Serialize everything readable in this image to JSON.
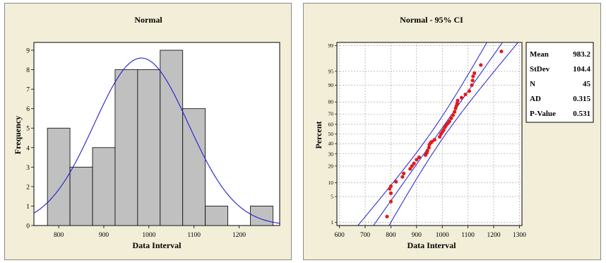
{
  "chart_data": [
    {
      "type": "bar",
      "title": "Normal",
      "xlabel": "Data Interval",
      "ylabel": "Frequency",
      "xlim": [
        745,
        1290
      ],
      "ylim": [
        0,
        9.4
      ],
      "x_ticks": [
        800,
        900,
        1000,
        1100,
        1200
      ],
      "y_ticks": [
        0,
        1,
        2,
        3,
        4,
        5,
        6,
        7,
        8,
        9
      ],
      "bin_width": 50,
      "bins": [
        {
          "center": 800,
          "count": 5
        },
        {
          "center": 850,
          "count": 3
        },
        {
          "center": 900,
          "count": 4
        },
        {
          "center": 950,
          "count": 8
        },
        {
          "center": 1000,
          "count": 8
        },
        {
          "center": 1050,
          "count": 9
        },
        {
          "center": 1100,
          "count": 6
        },
        {
          "center": 1150,
          "count": 1
        },
        {
          "center": 1200,
          "count": 0
        },
        {
          "center": 1250,
          "count": 1
        }
      ],
      "fit": {
        "mean": 983.2,
        "stdev": 104.4,
        "n": 45
      },
      "colors": {
        "bar": "#c0c0c0",
        "curve": "#1f1fd0",
        "plot_bg": "#ffffff",
        "panel_bg": "#f2eed8"
      }
    },
    {
      "type": "scatter",
      "title": "Normal - 95% CI",
      "xlabel": "Data Interval",
      "ylabel": "Percent",
      "xlim": [
        590,
        1310
      ],
      "x_ticks": [
        600,
        700,
        800,
        900,
        1000,
        1100,
        1200,
        1300
      ],
      "y_scale": "normal-probability",
      "y_ticks": [
        1,
        5,
        10,
        20,
        30,
        40,
        50,
        60,
        70,
        80,
        90,
        95,
        99
      ],
      "grid": true,
      "points": [
        {
          "x": 785,
          "y": 1.5
        },
        {
          "x": 800,
          "y": 3.8
        },
        {
          "x": 800,
          "y": 6.0
        },
        {
          "x": 795,
          "y": 7.5
        },
        {
          "x": 800,
          "y": 8.5
        },
        {
          "x": 820,
          "y": 10.5
        },
        {
          "x": 845,
          "y": 13
        },
        {
          "x": 850,
          "y": 15
        },
        {
          "x": 875,
          "y": 18
        },
        {
          "x": 882,
          "y": 20
        },
        {
          "x": 890,
          "y": 22
        },
        {
          "x": 900,
          "y": 25
        },
        {
          "x": 910,
          "y": 27
        },
        {
          "x": 935,
          "y": 29
        },
        {
          "x": 940,
          "y": 31
        },
        {
          "x": 942,
          "y": 33
        },
        {
          "x": 948,
          "y": 36
        },
        {
          "x": 950,
          "y": 39
        },
        {
          "x": 955,
          "y": 41
        },
        {
          "x": 960,
          "y": 42
        },
        {
          "x": 970,
          "y": 44
        },
        {
          "x": 990,
          "y": 47
        },
        {
          "x": 995,
          "y": 50
        },
        {
          "x": 1000,
          "y": 52
        },
        {
          "x": 1005,
          "y": 54
        },
        {
          "x": 1010,
          "y": 57
        },
        {
          "x": 1015,
          "y": 59
        },
        {
          "x": 1022,
          "y": 61
        },
        {
          "x": 1028,
          "y": 63
        },
        {
          "x": 1035,
          "y": 66
        },
        {
          "x": 1042,
          "y": 69
        },
        {
          "x": 1048,
          "y": 72
        },
        {
          "x": 1052,
          "y": 75
        },
        {
          "x": 1055,
          "y": 77
        },
        {
          "x": 1058,
          "y": 79
        },
        {
          "x": 1060,
          "y": 81
        },
        {
          "x": 1075,
          "y": 83
        },
        {
          "x": 1090,
          "y": 85
        },
        {
          "x": 1105,
          "y": 87
        },
        {
          "x": 1115,
          "y": 90
        },
        {
          "x": 1118,
          "y": 92
        },
        {
          "x": 1120,
          "y": 93.5
        },
        {
          "x": 1125,
          "y": 94.5
        },
        {
          "x": 1150,
          "y": 96.5
        },
        {
          "x": 1230,
          "y": 98.5
        }
      ],
      "ci_level": 0.95,
      "stats": [
        {
          "label": "Mean",
          "value": "983.2"
        },
        {
          "label": "StDev",
          "value": "104.4"
        },
        {
          "label": "N",
          "value": "45"
        },
        {
          "label": "AD",
          "value": "0.315"
        },
        {
          "label": "P-Value",
          "value": "0.531"
        }
      ],
      "colors": {
        "points": "#e31a1c",
        "lines": "#1f1fd0",
        "grid": "#9a9a9a",
        "plot_bg": "#ffffff",
        "panel_bg": "#f2eed8"
      }
    }
  ]
}
